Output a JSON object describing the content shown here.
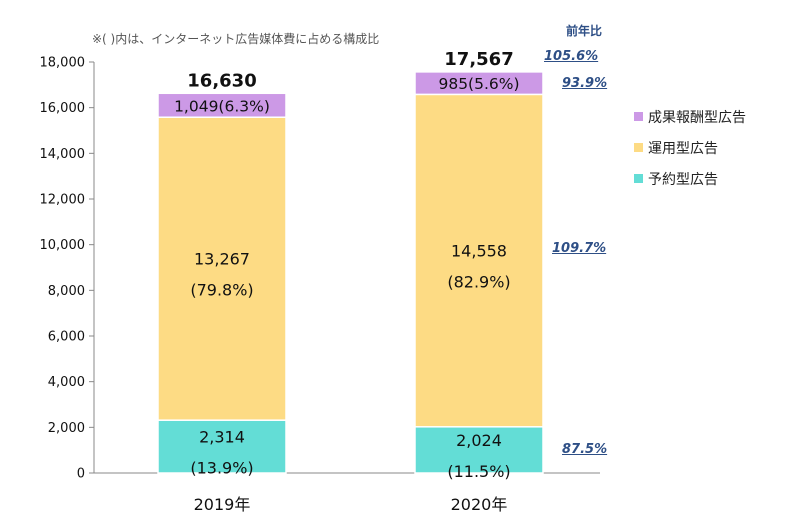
{
  "note": "※( )内は、インターネット広告媒体費に占める構成比",
  "yoy_title": "前年比",
  "yoy_values": {
    "total": "105.6%",
    "performance": "93.9%",
    "programmatic": "109.7%",
    "reserved": "87.5%"
  },
  "colors": {
    "performance": "#cc99e6",
    "programmatic": "#fddb84",
    "reserved": "#63ddd6",
    "axis": "#888888"
  },
  "chart_data": {
    "type": "bar",
    "stacked": true,
    "title": "",
    "xlabel": "",
    "ylabel": "",
    "ylim": [
      0,
      18000
    ],
    "yticks": [
      0,
      2000,
      4000,
      6000,
      8000,
      10000,
      12000,
      14000,
      16000,
      18000
    ],
    "ytick_labels": [
      "0",
      "2,000",
      "4,000",
      "6,000",
      "8,000",
      "10,000",
      "12,000",
      "14,000",
      "16,000",
      "18,000"
    ],
    "categories": [
      "2019年",
      "2020年"
    ],
    "totals": [
      16630,
      17567
    ],
    "total_labels": [
      "16,630",
      "17,567"
    ],
    "series": [
      {
        "key": "reserved",
        "name": "予約型広告",
        "values": [
          2314,
          2024
        ],
        "value_labels": [
          "2,314",
          "2,024"
        ],
        "share_labels": [
          "(13.9%)",
          "(11.5%)"
        ]
      },
      {
        "key": "programmatic",
        "name": "運用型広告",
        "values": [
          13267,
          14558
        ],
        "value_labels": [
          "13,267",
          "14,558"
        ],
        "share_labels": [
          "(79.8%)",
          "(82.9%)"
        ]
      },
      {
        "key": "performance",
        "name": "成果報酬型広告",
        "values": [
          1049,
          985
        ],
        "value_labels": [
          "1,049(6.3%)",
          "985(5.6%)"
        ]
      }
    ],
    "legend_order": [
      "performance",
      "programmatic",
      "reserved"
    ],
    "legend_position": "right"
  }
}
